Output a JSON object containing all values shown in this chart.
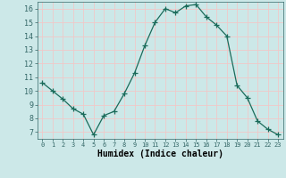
{
  "x": [
    0,
    1,
    2,
    3,
    4,
    5,
    6,
    7,
    8,
    9,
    10,
    11,
    12,
    13,
    14,
    15,
    16,
    17,
    18,
    19,
    20,
    21,
    22,
    23
  ],
  "y": [
    10.6,
    10.0,
    9.4,
    8.7,
    8.3,
    6.8,
    8.2,
    8.5,
    9.8,
    11.3,
    13.3,
    15.0,
    16.0,
    15.7,
    16.2,
    16.3,
    15.4,
    14.8,
    14.0,
    10.4,
    9.5,
    7.8,
    7.2,
    6.8
  ],
  "xlabel": "Humidex (Indice chaleur)",
  "ylim": [
    6.5,
    16.5
  ],
  "xlim": [
    -0.5,
    23.5
  ],
  "yticks": [
    7,
    8,
    9,
    10,
    11,
    12,
    13,
    14,
    15,
    16
  ],
  "xticks": [
    0,
    1,
    2,
    3,
    4,
    5,
    6,
    7,
    8,
    9,
    10,
    11,
    12,
    13,
    14,
    15,
    16,
    17,
    18,
    19,
    20,
    21,
    22,
    23
  ],
  "xtick_labels": [
    "0",
    "1",
    "2",
    "3",
    "4",
    "5",
    "6",
    "7",
    "8",
    "9",
    "10",
    "11",
    "12",
    "13",
    "14",
    "15",
    "16",
    "17",
    "18",
    "19",
    "20",
    "21",
    "22",
    "23"
  ],
  "line_color": "#1a6b5a",
  "marker_color": "#1a6b5a",
  "bg_color": "#cce8e8",
  "grid_color": "#f0c8c8",
  "fig_bg_color": "#cce8e8"
}
